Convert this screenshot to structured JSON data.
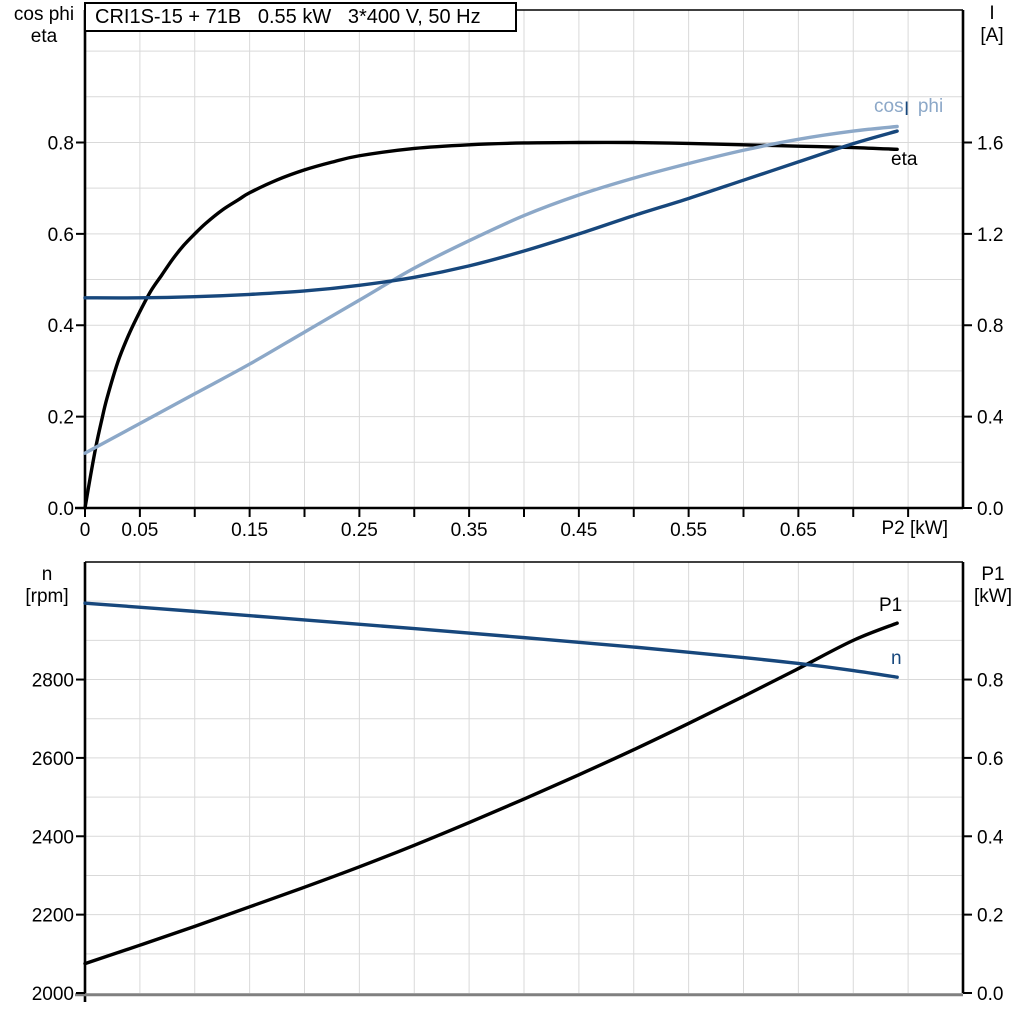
{
  "title_box": {
    "text": "CRI1S-15 + 71B   0.55 kW   3*400 V, 50 Hz"
  },
  "colors": {
    "black": "#000000",
    "dark_blue": "#17477c",
    "light_blue": "#8ca8c8",
    "grid": "#d9d9d9",
    "frame_gray": "#808080",
    "background": "#ffffff"
  },
  "chart_data": [
    {
      "id": "top",
      "type": "line",
      "x_axis": {
        "label": "P2 [kW]",
        "range": [
          0,
          0.8
        ],
        "grid_step": 0.05,
        "tick_step": 0.05,
        "tick_label_values": [
          0,
          0.05,
          0.15,
          0.25,
          0.35,
          0.45,
          0.55,
          0.65
        ],
        "tick_labels": [
          "0",
          "0.05",
          "0.15",
          "0.25",
          "0.35",
          "0.45",
          "0.55",
          "0.65"
        ]
      },
      "left_axis": {
        "label_lines": [
          "cos phi",
          "eta"
        ],
        "range": [
          0,
          1.09
        ],
        "grid_step": 0.1,
        "tick_values": [
          0,
          0.2,
          0.4,
          0.6,
          0.8
        ],
        "tick_labels": [
          "0.0",
          "0.2",
          "0.4",
          "0.6",
          "0.8"
        ]
      },
      "right_axis": {
        "label_lines": [
          "I",
          "[A]"
        ],
        "range": [
          0,
          2.18
        ],
        "tick_values": [
          0,
          0.4,
          0.8,
          1.2,
          1.6
        ],
        "tick_labels": [
          "0.0",
          "0.4",
          "0.8",
          "1.2",
          "1.6"
        ]
      },
      "series": [
        {
          "name": "eta",
          "label": "eta",
          "color": "#000000",
          "axis": "left",
          "x": [
            0,
            0.005,
            0.01,
            0.015,
            0.02,
            0.03,
            0.04,
            0.05,
            0.06,
            0.07,
            0.08,
            0.09,
            0.1,
            0.11,
            0.125,
            0.14,
            0.15,
            0.175,
            0.2,
            0.225,
            0.25,
            0.3,
            0.35,
            0.4,
            0.45,
            0.5,
            0.55,
            0.6,
            0.65,
            0.7,
            0.74
          ],
          "y": [
            0,
            0.07,
            0.135,
            0.19,
            0.24,
            0.32,
            0.38,
            0.43,
            0.475,
            0.51,
            0.545,
            0.575,
            0.6,
            0.623,
            0.652,
            0.675,
            0.69,
            0.718,
            0.74,
            0.757,
            0.771,
            0.787,
            0.795,
            0.799,
            0.8,
            0.8,
            0.798,
            0.795,
            0.792,
            0.789,
            0.785
          ]
        },
        {
          "name": "cos phi",
          "label": "cos phi",
          "color": "#8ca8c8",
          "axis": "left",
          "x": [
            0,
            0.05,
            0.1,
            0.15,
            0.2,
            0.25,
            0.3,
            0.35,
            0.4,
            0.45,
            0.5,
            0.55,
            0.6,
            0.65,
            0.7,
            0.74
          ],
          "y": [
            0.12,
            0.185,
            0.25,
            0.315,
            0.385,
            0.455,
            0.525,
            0.585,
            0.64,
            0.685,
            0.722,
            0.754,
            0.783,
            0.807,
            0.825,
            0.835
          ]
        },
        {
          "name": "I",
          "label": "I",
          "color": "#17477c",
          "axis": "right",
          "x": [
            0,
            0.05,
            0.1,
            0.15,
            0.2,
            0.25,
            0.3,
            0.35,
            0.4,
            0.45,
            0.5,
            0.55,
            0.6,
            0.65,
            0.7,
            0.74
          ],
          "y": [
            0.92,
            0.92,
            0.925,
            0.935,
            0.95,
            0.975,
            1.01,
            1.06,
            1.125,
            1.2,
            1.28,
            1.355,
            1.435,
            1.515,
            1.595,
            1.65
          ]
        }
      ]
    },
    {
      "id": "bottom",
      "type": "line",
      "x_axis": {
        "label": null,
        "range": [
          0,
          0.8
        ],
        "grid_step": 0.05,
        "tick_label_values": [],
        "tick_labels": []
      },
      "left_axis": {
        "label_lines": [
          "n",
          "[rpm]"
        ],
        "range": [
          2000,
          3100
        ],
        "grid_step": 100,
        "tick_values": [
          2000,
          2200,
          2400,
          2600,
          2800
        ],
        "tick_labels": [
          "2000",
          "2200",
          "2400",
          "2600",
          "2800"
        ]
      },
      "right_axis": {
        "label_lines": [
          "P1",
          "[kW]"
        ],
        "range": [
          0,
          1.1
        ],
        "tick_values": [
          0,
          0.2,
          0.4,
          0.6,
          0.8
        ],
        "tick_labels": [
          "0.0",
          "0.2",
          "0.4",
          "0.6",
          "0.8"
        ]
      },
      "series": [
        {
          "name": "P1",
          "label": "P1",
          "color": "#000000",
          "axis": "right",
          "x": [
            0,
            0.05,
            0.1,
            0.15,
            0.2,
            0.25,
            0.3,
            0.35,
            0.4,
            0.45,
            0.5,
            0.55,
            0.6,
            0.65,
            0.7,
            0.74
          ],
          "y": [
            0.075,
            0.122,
            0.17,
            0.22,
            0.27,
            0.322,
            0.377,
            0.435,
            0.495,
            0.557,
            0.621,
            0.688,
            0.757,
            0.828,
            0.9,
            0.944
          ]
        },
        {
          "name": "n",
          "label": "n",
          "color": "#17477c",
          "axis": "left",
          "x": [
            0,
            0.1,
            0.2,
            0.3,
            0.4,
            0.5,
            0.6,
            0.65,
            0.7,
            0.74
          ],
          "y": [
            2995,
            2974,
            2952,
            2930,
            2907,
            2883,
            2856,
            2841,
            2823,
            2806
          ]
        }
      ]
    }
  ]
}
